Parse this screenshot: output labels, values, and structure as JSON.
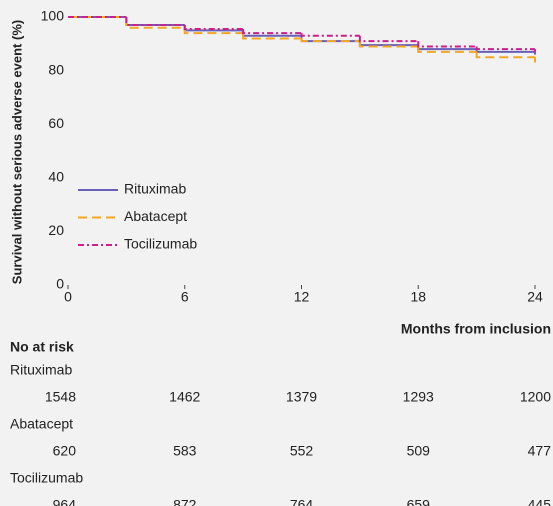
{
  "chart_data": {
    "type": "line",
    "drawstyle": "steps-post",
    "ylabel": "Survival without serious adverse event (%)",
    "xlabel": "Months from inclusion",
    "x": [
      0,
      3,
      6,
      9,
      12,
      15,
      18,
      21,
      24
    ],
    "series": [
      {
        "name": "Rituximab",
        "color": "#6a5fb8",
        "dash": "solid",
        "values": [
          100,
          97,
          95,
          93,
          91,
          89.5,
          88,
          87,
          86
        ]
      },
      {
        "name": "Abatacept",
        "color": "#f5a623",
        "dash": "dashed",
        "values": [
          100,
          96,
          94,
          92,
          91,
          89,
          87,
          85,
          83
        ]
      },
      {
        "name": "Tocilizumab",
        "color": "#cc1f8a",
        "dash": "dashdot",
        "values": [
          100,
          97,
          95.5,
          94,
          93,
          91,
          89,
          88,
          87
        ]
      }
    ],
    "xlim": [
      0,
      24
    ],
    "xticks": [
      0,
      6,
      12,
      18,
      24
    ],
    "ylim": [
      0,
      100
    ],
    "yticks": [
      0,
      20,
      40,
      60,
      80,
      100
    ],
    "legend": "lower left",
    "risk_table": {
      "title": "No at risk",
      "rows": [
        {
          "name": "Rituximab",
          "values": [
            1548,
            1462,
            1379,
            1293,
            1200
          ]
        },
        {
          "name": "Abatacept",
          "values": [
            620,
            583,
            552,
            509,
            477
          ]
        },
        {
          "name": "Tocilizumab",
          "values": [
            964,
            872,
            764,
            659,
            445
          ]
        }
      ]
    }
  }
}
